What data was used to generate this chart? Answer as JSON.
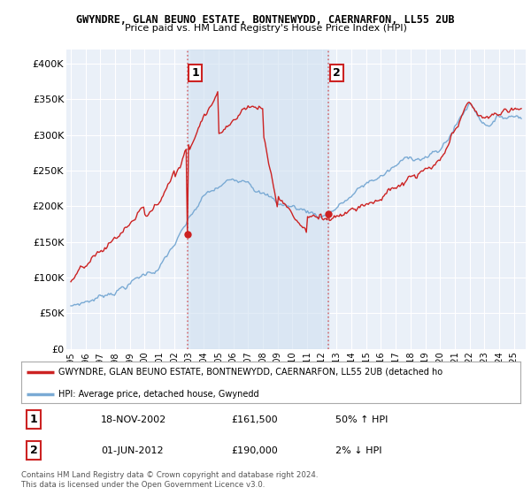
{
  "title1": "GWYNDRE, GLAN BEUNO ESTATE, BONTNEWYDD, CAERNARFON, LL55 2UB",
  "title2": "Price paid vs. HM Land Registry's House Price Index (HPI)",
  "ylabel_ticks": [
    "£0",
    "£50K",
    "£100K",
    "£150K",
    "£200K",
    "£250K",
    "£300K",
    "£350K",
    "£400K"
  ],
  "ytick_vals": [
    0,
    50000,
    100000,
    150000,
    200000,
    250000,
    300000,
    350000,
    400000
  ],
  "ylim": [
    0,
    420000
  ],
  "xlim_start": 1994.7,
  "xlim_end": 2025.8,
  "xtick_years": [
    1995,
    1996,
    1997,
    1998,
    1999,
    2000,
    2001,
    2002,
    2003,
    2004,
    2005,
    2006,
    2007,
    2008,
    2009,
    2010,
    2011,
    2012,
    2013,
    2014,
    2015,
    2016,
    2017,
    2018,
    2019,
    2020,
    2021,
    2022,
    2023,
    2024,
    2025
  ],
  "hpi_color": "#7aaad4",
  "price_color": "#cc2222",
  "vline_color": "#cc2222",
  "vline_alpha": 0.6,
  "shade_color": "#d0e0f0",
  "shade_alpha": 0.6,
  "sale1_year": 2002.88,
  "sale1_price": 161500,
  "sale2_year": 2012.42,
  "sale2_price": 190000,
  "legend_line1": "GWYNDRE, GLAN BEUNO ESTATE, BONTNEWYDD, CAERNARFON, LL55 2UB (detached ho",
  "legend_line2": "HPI: Average price, detached house, Gwynedd",
  "table_row1_num": "1",
  "table_row1_date": "18-NOV-2002",
  "table_row1_price": "£161,500",
  "table_row1_pct": "50% ↑ HPI",
  "table_row2_num": "2",
  "table_row2_date": "01-JUN-2012",
  "table_row2_price": "£190,000",
  "table_row2_pct": "2% ↓ HPI",
  "footnote": "Contains HM Land Registry data © Crown copyright and database right 2024.\nThis data is licensed under the Open Government Licence v3.0.",
  "bg_color": "#ffffff",
  "plot_bg_color": "#eaf0f8",
  "grid_color": "#ffffff",
  "label_box_color": "#ffffff",
  "label_box_edge": "#cc2222"
}
